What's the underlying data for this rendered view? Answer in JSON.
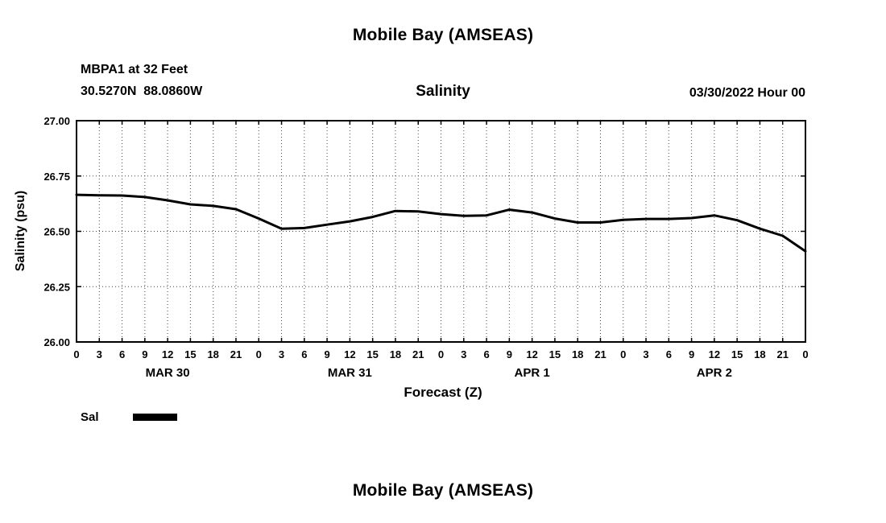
{
  "page": {
    "title_top": "Mobile Bay (AMSEAS)",
    "title_bottom": "Mobile Bay (AMSEAS)"
  },
  "header": {
    "station": "MBPA1 at 32 Feet",
    "coords": "30.5270N  88.0860W",
    "subtitle": "Salinity",
    "run": "03/30/2022 Hour 00"
  },
  "legend": {
    "label": "Sal"
  },
  "chart_data": {
    "type": "line",
    "title": "Mobile Bay (AMSEAS)",
    "subtitle": "Salinity",
    "xlabel": "Forecast (Z)",
    "ylabel": "Salinity (psu)",
    "ylim": [
      26.0,
      27.0
    ],
    "yticks": [
      26.0,
      26.25,
      26.5,
      26.75,
      27.0
    ],
    "ytick_labels": [
      "26.00",
      "26.25",
      "26.50",
      "26.75",
      "27.00"
    ],
    "x_hours": [
      0,
      3,
      6,
      9,
      12,
      15,
      18,
      21,
      24,
      27,
      30,
      33,
      36,
      39,
      42,
      45,
      48,
      51,
      54,
      57,
      60,
      63,
      66,
      69,
      72,
      75,
      78,
      81,
      84,
      87,
      90,
      93,
      96
    ],
    "x_tick_labels": [
      "0",
      "3",
      "6",
      "9",
      "12",
      "15",
      "18",
      "21",
      "0",
      "3",
      "6",
      "9",
      "12",
      "15",
      "18",
      "21",
      "0",
      "3",
      "6",
      "9",
      "12",
      "15",
      "18",
      "21",
      "0",
      "3",
      "6",
      "9",
      "12",
      "15",
      "18",
      "21",
      "0"
    ],
    "day_labels": [
      "MAR 30",
      "MAR 31",
      "APR 1",
      "APR 2"
    ],
    "grid": true,
    "legend_position": "bottom-left",
    "line_color": "#000000",
    "series": [
      {
        "name": "Sal",
        "values": [
          26.665,
          26.663,
          26.662,
          26.655,
          26.64,
          26.622,
          26.615,
          26.6,
          26.558,
          26.512,
          26.515,
          26.53,
          26.545,
          26.565,
          26.592,
          26.59,
          26.578,
          26.57,
          26.572,
          26.598,
          26.585,
          26.558,
          26.54,
          26.54,
          26.552,
          26.556,
          26.556,
          26.56,
          26.572,
          26.55,
          26.512,
          26.48,
          26.41
        ]
      }
    ]
  }
}
